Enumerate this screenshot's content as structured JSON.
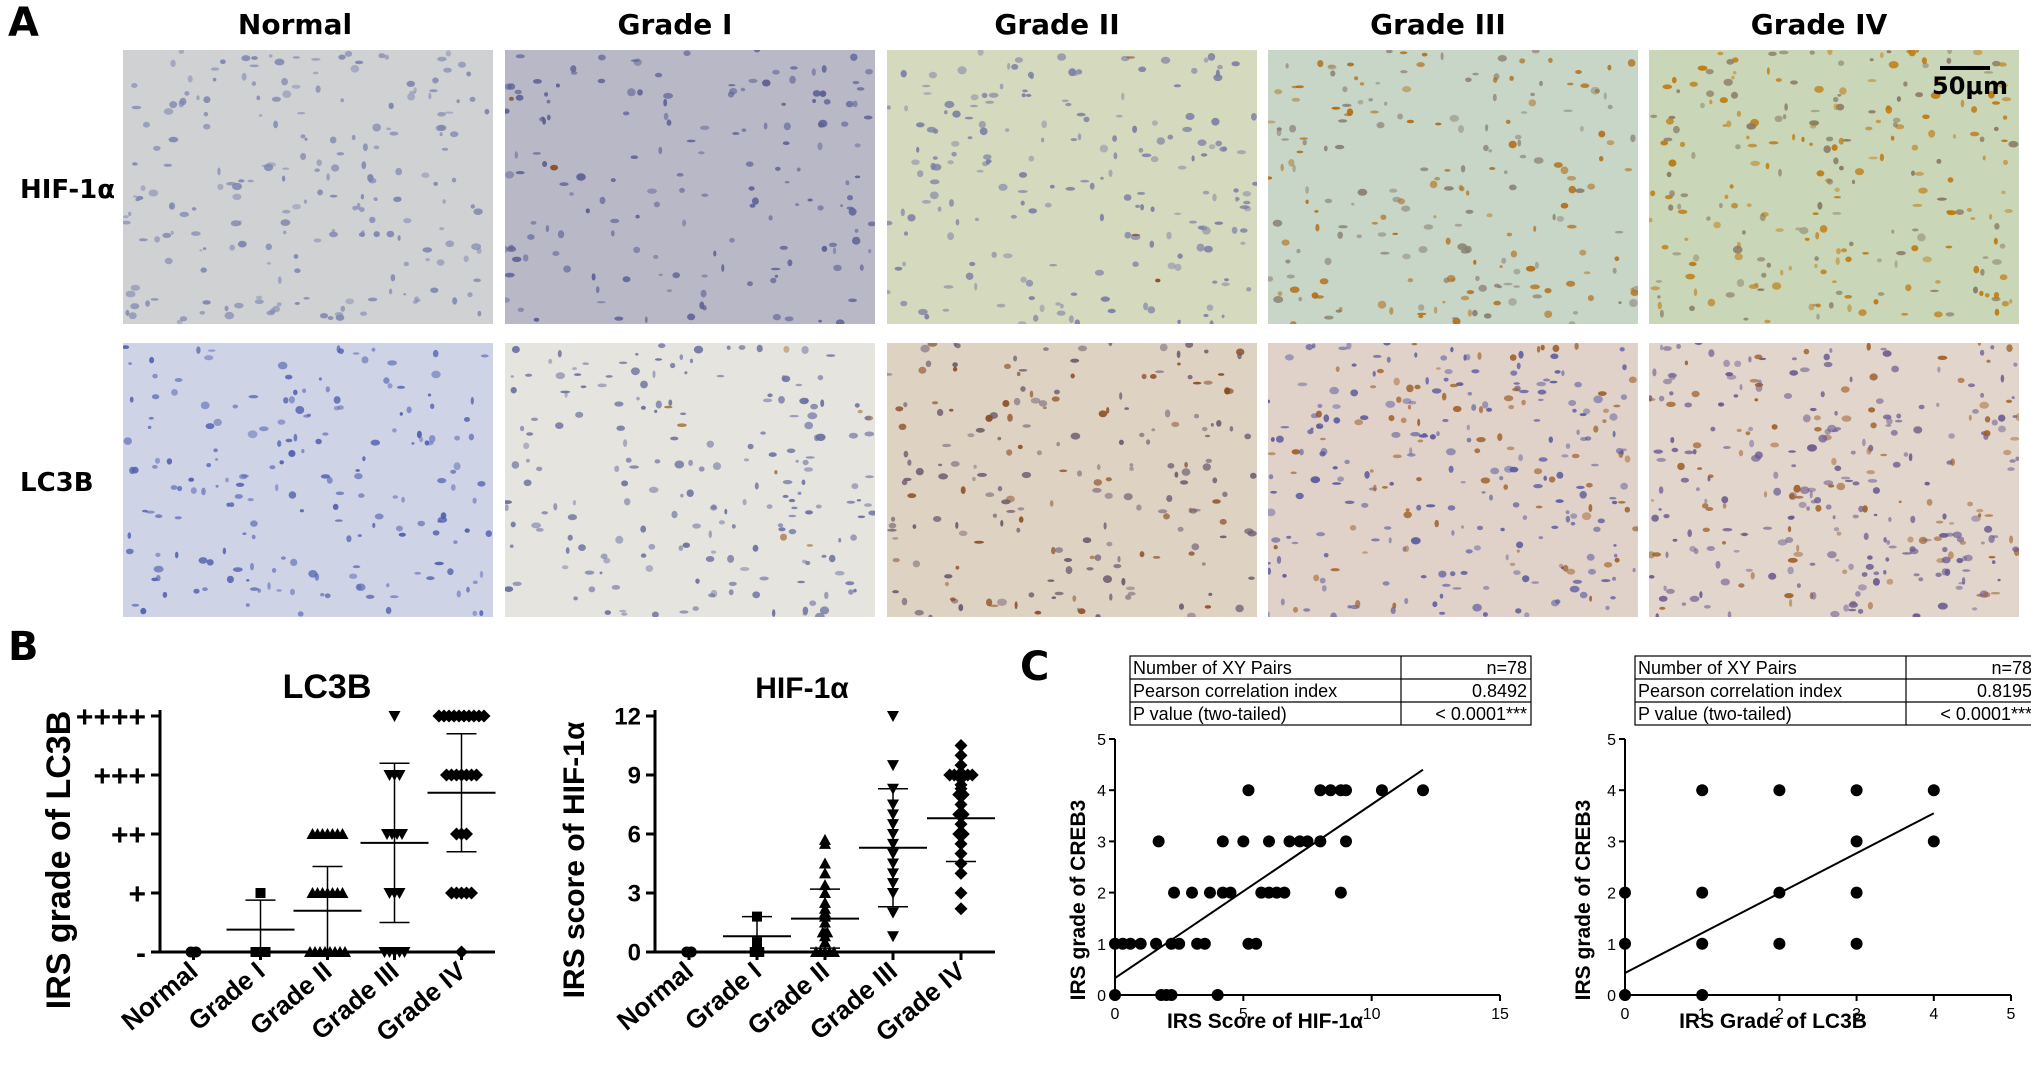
{
  "panel_a": {
    "letter": "A",
    "columns": [
      "Normal",
      "Grade I",
      "Grade II",
      "Grade III",
      "Grade IV"
    ],
    "rows": [
      "HIF-1α",
      "LC3B"
    ],
    "scale_bar": "50μm",
    "tiles": [
      [
        {
          "bg": "#cfd1d3",
          "cell": "#7d85b0",
          "brown": "#8a5a2a",
          "density": 0.55,
          "brownFrac": 0.0
        },
        {
          "bg": "#b9b8c7",
          "cell": "#5a5f95",
          "brown": "#8a4a10",
          "density": 0.35,
          "brownFrac": 0.01
        },
        {
          "bg": "#d5d9bd",
          "cell": "#7b7fa5",
          "brown": "#8a3a10",
          "density": 0.5,
          "brownFrac": 0.02
        },
        {
          "bg": "#c7d6c7",
          "cell": "#8a7f70",
          "brown": "#b26a10",
          "density": 0.55,
          "brownFrac": 0.45
        },
        {
          "bg": "#c9d6b8",
          "cell": "#8a7a60",
          "brown": "#c0780c",
          "density": 0.7,
          "brownFrac": 0.6
        }
      ],
      [
        {
          "bg": "#ced3e6",
          "cell": "#5060b0",
          "brown": "#8a5a2a",
          "density": 0.45,
          "brownFrac": 0.0
        },
        {
          "bg": "#e6e4df",
          "cell": "#6a70a0",
          "brown": "#a06a30",
          "density": 0.5,
          "brownFrac": 0.05
        },
        {
          "bg": "#ded3c3",
          "cell": "#705a70",
          "brown": "#8a4a20",
          "density": 0.5,
          "brownFrac": 0.25
        },
        {
          "bg": "#e0d2c8",
          "cell": "#5a5aa0",
          "brown": "#a0602a",
          "density": 0.85,
          "brownFrac": 0.3
        },
        {
          "bg": "#e2d6cc",
          "cell": "#6a5a90",
          "brown": "#a0602a",
          "density": 0.95,
          "brownFrac": 0.35
        }
      ]
    ]
  },
  "panel_b_letter": "B",
  "panel_c_letter": "C",
  "chart_data": [
    {
      "type": "scatter",
      "title": "LC3B",
      "xlabel": "",
      "ylabel": "IRS grade of LC3B",
      "categories": [
        "Normal",
        "Grade I",
        "Grade II",
        "Grade III",
        "Grade IV"
      ],
      "ytick_labels": [
        "-",
        "+",
        "++",
        "+++",
        "++++"
      ],
      "ylim": [
        0,
        4
      ],
      "markers": [
        "circle",
        "square",
        "triangle-up",
        "triangle-down",
        "diamond"
      ],
      "points": [
        [
          0,
          0
        ],
        [
          0,
          0,
          0,
          1
        ],
        [
          0,
          0,
          0,
          0,
          0,
          0,
          0,
          0,
          1,
          1,
          1,
          1,
          1,
          1,
          1,
          2,
          2,
          2,
          2,
          2,
          2,
          2
        ],
        [
          0,
          0,
          0,
          0,
          0,
          1,
          1,
          1,
          2,
          2,
          2,
          2,
          3,
          3,
          3,
          4
        ],
        [
          0,
          1,
          1,
          1,
          1,
          1,
          2,
          2,
          2,
          3,
          3,
          3,
          3,
          3,
          3,
          3,
          4,
          4,
          4,
          4,
          4,
          4,
          4,
          4,
          4,
          4
        ]
      ],
      "means": [
        0,
        0.38,
        0.7,
        1.85,
        2.7
      ],
      "sd": [
        0,
        0.5,
        0.75,
        1.35,
        1.0
      ]
    },
    {
      "type": "scatter",
      "title": "HIF-1α",
      "xlabel": "",
      "ylabel": "IRS score of HIF-1α",
      "categories": [
        "Normal",
        "Grade I",
        "Grade II",
        "Grade III",
        "Grade IV"
      ],
      "yticks": [
        0,
        3,
        6,
        9,
        12
      ],
      "ylim": [
        0,
        12
      ],
      "markers": [
        "circle",
        "square",
        "triangle-up",
        "triangle-down",
        "diamond"
      ],
      "points": [
        [
          0,
          0
        ],
        [
          0,
          0,
          0.5,
          1.8
        ],
        [
          0,
          0,
          0,
          0,
          0,
          0.5,
          0.8,
          1,
          1,
          1.5,
          1.8,
          2,
          2.2,
          2.5,
          3,
          3.4,
          4,
          4.5,
          5.5,
          5.7
        ],
        [
          0.8,
          2,
          3,
          3.5,
          4,
          4.5,
          5,
          5.5,
          6,
          6.5,
          7,
          7.5,
          8.3,
          9.5,
          12
        ],
        [
          2.2,
          3,
          4,
          4.5,
          5,
          5.5,
          6,
          6,
          6.5,
          7,
          7,
          7.5,
          8,
          8,
          8.3,
          8.5,
          8.8,
          9,
          9,
          9,
          9,
          9,
          9,
          9.5,
          10,
          10.5
        ]
      ],
      "means": [
        0,
        0.8,
        1.7,
        5.3,
        6.8
      ],
      "sd": [
        0,
        1.0,
        1.5,
        3.0,
        2.2
      ]
    },
    {
      "type": "scatter",
      "xlabel": "IRS Score of HIF-1α",
      "ylabel": "IRS  grade of CREB3",
      "xlim": [
        0,
        15
      ],
      "ylim": [
        0,
        5
      ],
      "xticks": [
        0,
        5,
        10,
        15
      ],
      "yticks": [
        0,
        1,
        2,
        3,
        4,
        5
      ],
      "stats_table": [
        [
          "Number of XY Pairs",
          "n=78"
        ],
        [
          "Pearson correlation index",
          "0.8492"
        ],
        [
          "P value (two-tailed)",
          "< 0.0001***"
        ]
      ],
      "points": [
        [
          0,
          0
        ],
        [
          0,
          1
        ],
        [
          0.3,
          1
        ],
        [
          0.6,
          1
        ],
        [
          1,
          1
        ],
        [
          1.6,
          1
        ],
        [
          1.8,
          0
        ],
        [
          1.7,
          3
        ],
        [
          2,
          0
        ],
        [
          2.2,
          0
        ],
        [
          2.2,
          1
        ],
        [
          2.3,
          2
        ],
        [
          2.5,
          1
        ],
        [
          3,
          2
        ],
        [
          3.2,
          1
        ],
        [
          3.5,
          1
        ],
        [
          3.7,
          2
        ],
        [
          4,
          0
        ],
        [
          4.2,
          2
        ],
        [
          4.5,
          2
        ],
        [
          4.2,
          3
        ],
        [
          5,
          3
        ],
        [
          5.2,
          1
        ],
        [
          5.5,
          1
        ],
        [
          5.2,
          4
        ],
        [
          5.7,
          2
        ],
        [
          6,
          2
        ],
        [
          6,
          3
        ],
        [
          6.3,
          2
        ],
        [
          6.6,
          2
        ],
        [
          6.8,
          3
        ],
        [
          7.2,
          3
        ],
        [
          7.5,
          3
        ],
        [
          8,
          3
        ],
        [
          8,
          4
        ],
        [
          8.4,
          4
        ],
        [
          8.8,
          2
        ],
        [
          8.8,
          4
        ],
        [
          9,
          4
        ],
        [
          9,
          3
        ],
        [
          10.4,
          4
        ],
        [
          12,
          4
        ]
      ],
      "fit_line": [
        [
          0,
          0.33
        ],
        [
          12,
          4.4
        ]
      ]
    },
    {
      "type": "scatter",
      "xlabel": "IRS Grade of LC3B",
      "ylabel": "IRS  grade of CREB3",
      "xlim": [
        0,
        5
      ],
      "ylim": [
        0,
        5
      ],
      "xticks": [
        0,
        1,
        2,
        3,
        4,
        5
      ],
      "yticks": [
        0,
        1,
        2,
        3,
        4,
        5
      ],
      "stats_table": [
        [
          "Number of XY Pairs",
          "n=78"
        ],
        [
          "Pearson correlation index",
          "0.8195"
        ],
        [
          "P value (two-tailed)",
          "< 0.0001***"
        ]
      ],
      "points": [
        [
          0,
          0
        ],
        [
          0,
          1
        ],
        [
          0,
          2
        ],
        [
          1,
          0
        ],
        [
          1,
          1
        ],
        [
          1,
          2
        ],
        [
          1,
          4
        ],
        [
          2,
          1
        ],
        [
          2,
          2
        ],
        [
          2,
          4
        ],
        [
          3,
          1
        ],
        [
          3,
          2
        ],
        [
          3,
          3
        ],
        [
          3,
          4
        ],
        [
          4,
          3
        ],
        [
          4,
          4
        ]
      ],
      "fit_line": [
        [
          0,
          0.43
        ],
        [
          4,
          3.55
        ]
      ]
    }
  ]
}
